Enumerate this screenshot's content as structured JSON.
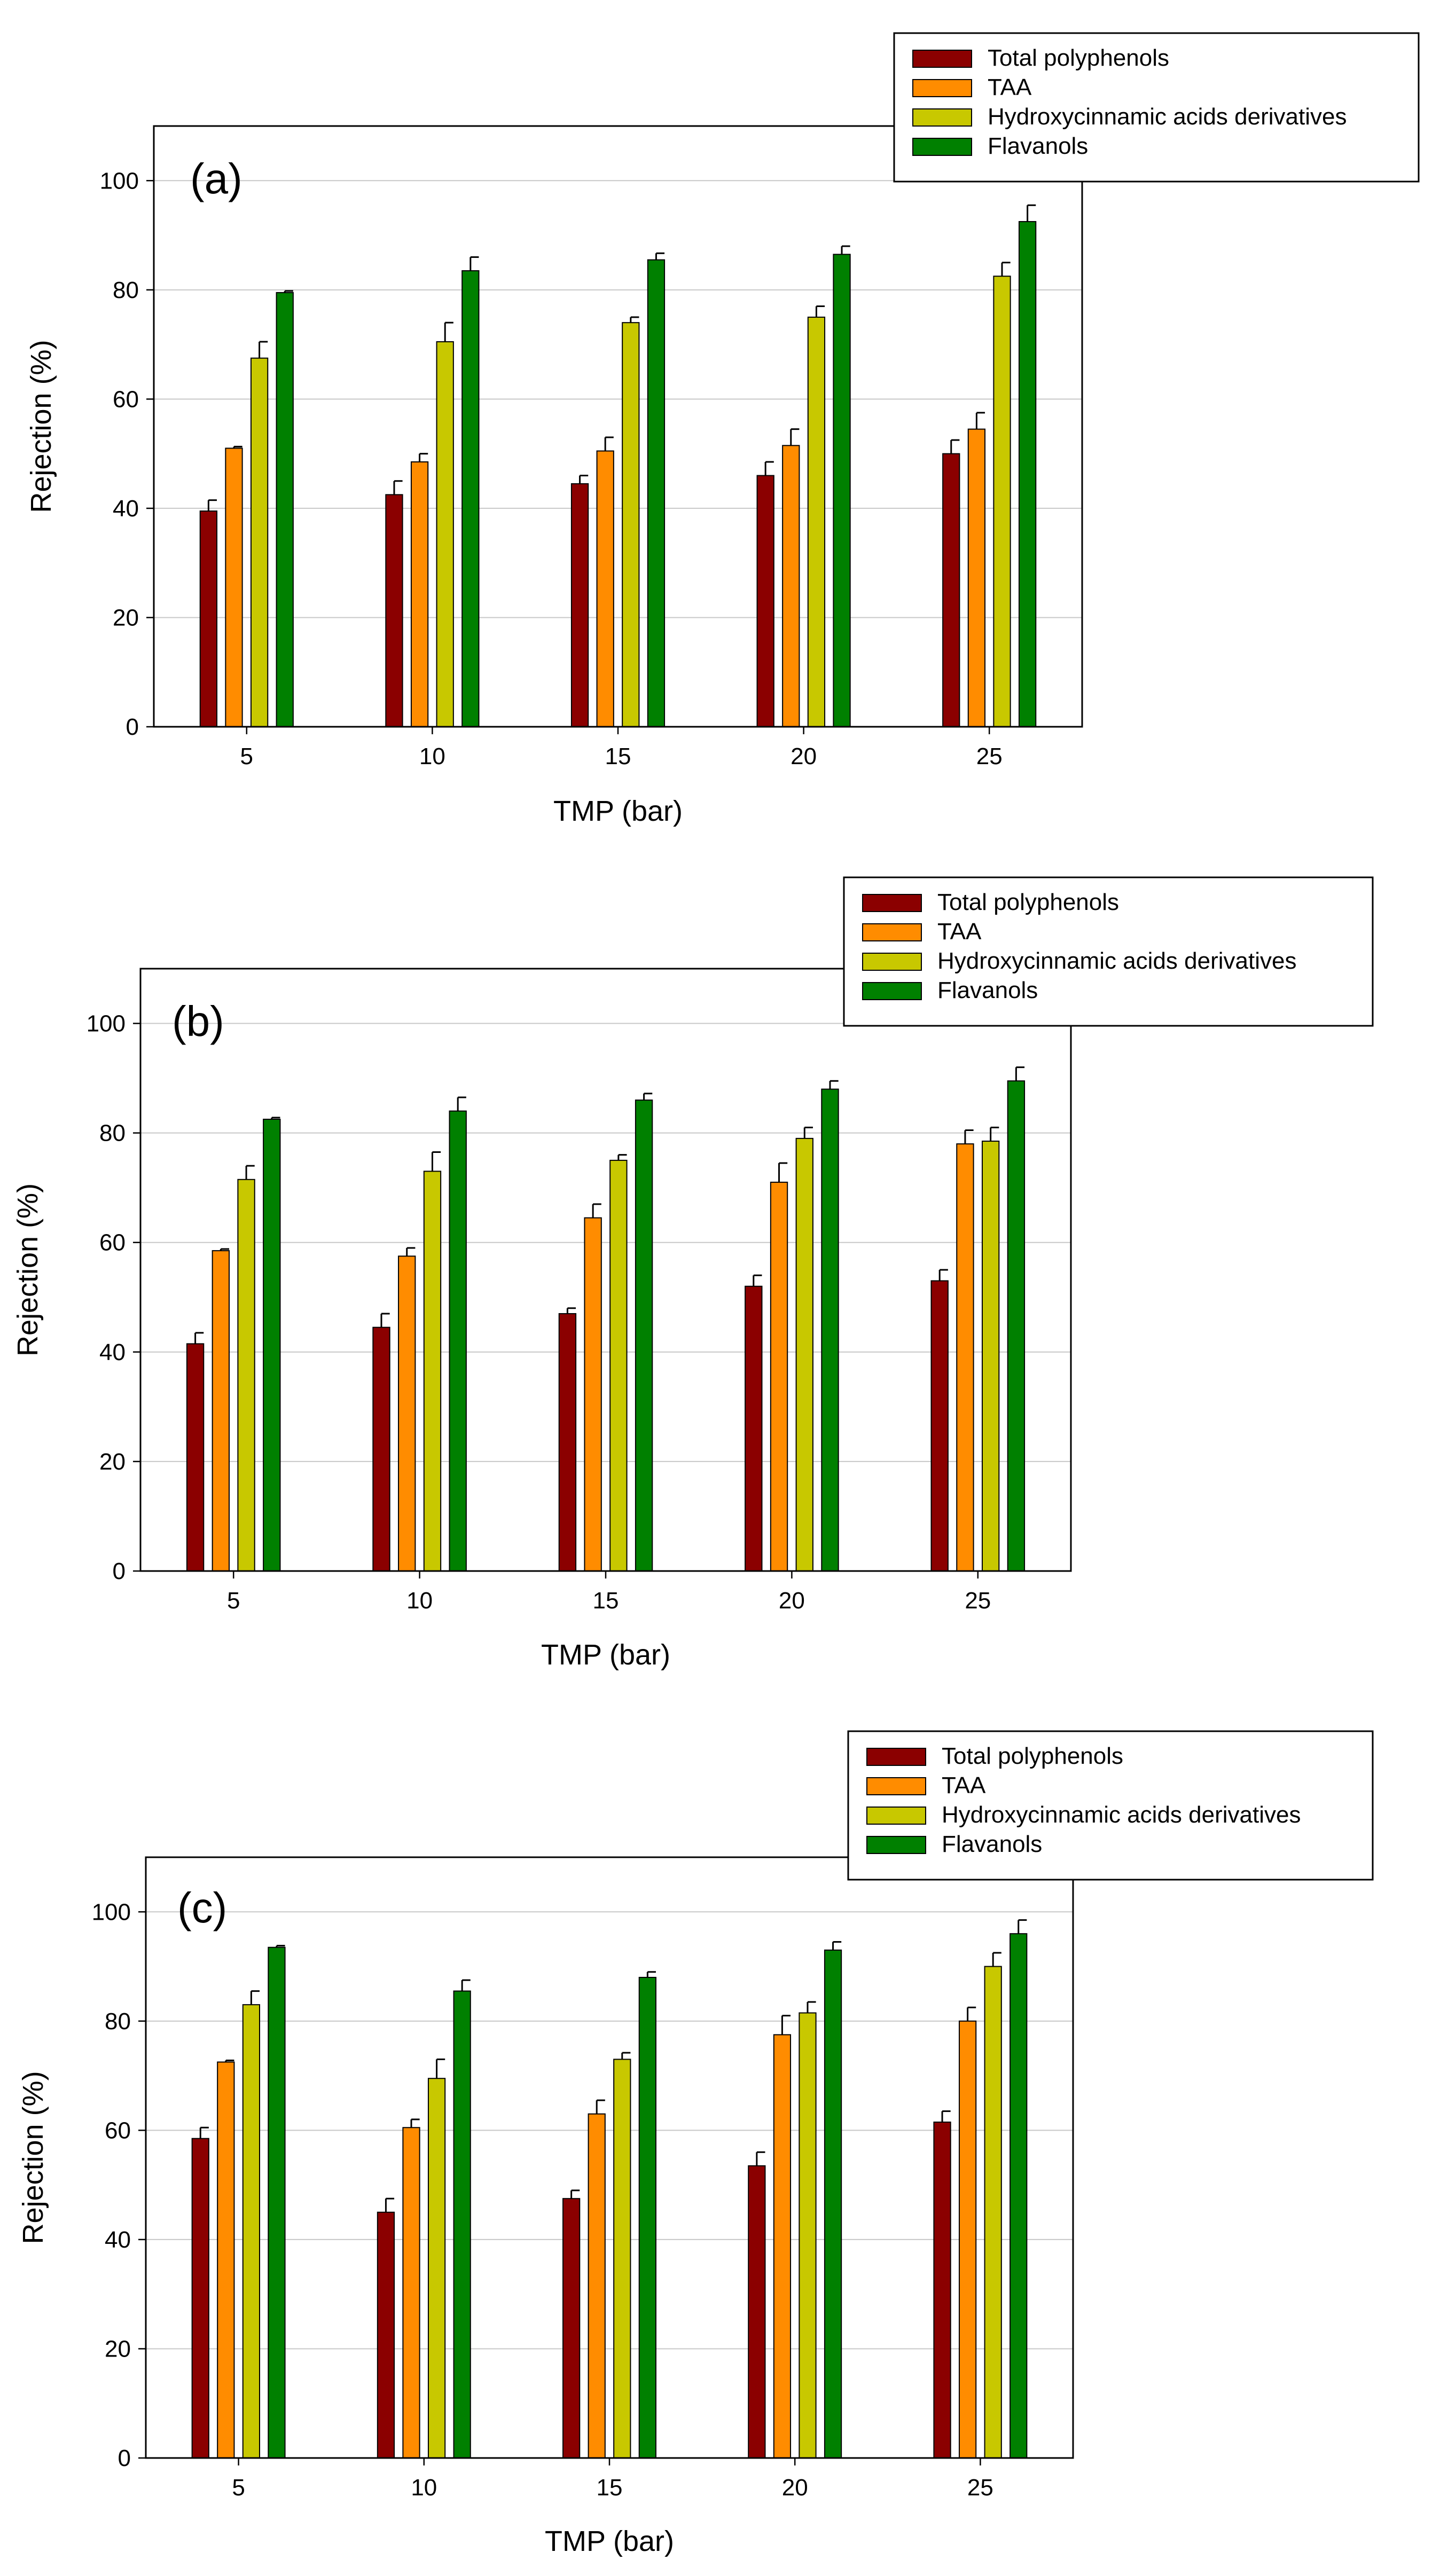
{
  "chart_data": [
    {
      "type": "bar",
      "panel_label": "(a)",
      "xlabel": "TMP (bar)",
      "ylabel": "Rejection (%)",
      "ylim": [
        0,
        110
      ],
      "yticks": [
        0,
        20,
        40,
        60,
        80,
        100
      ],
      "categories": [
        "5",
        "10",
        "15",
        "20",
        "25"
      ],
      "grid": true,
      "legend_position": "top-right",
      "series": [
        {
          "name": "Total polyphenols",
          "color": "#8b0000",
          "values": [
            39.5,
            42.5,
            44.5,
            46,
            50
          ],
          "errors": [
            2,
            2.5,
            1.5,
            2.5,
            2.5
          ]
        },
        {
          "name": "TAA",
          "color": "#ff8c00",
          "values": [
            51,
            48.5,
            50.5,
            51.5,
            54.5
          ],
          "errors": [
            0.3,
            1.5,
            2.5,
            3,
            3
          ]
        },
        {
          "name": "Hydroxycinnamic acids derivatives",
          "color": "#c8c800",
          "values": [
            67.5,
            70.5,
            74,
            75,
            82.5
          ],
          "errors": [
            3,
            3.5,
            1,
            2,
            2.5
          ]
        },
        {
          "name": "Flavanols",
          "color": "#008000",
          "values": [
            79.5,
            83.5,
            85.5,
            86.5,
            92.5
          ],
          "errors": [
            0.3,
            2.5,
            1.2,
            1.5,
            3
          ]
        }
      ]
    },
    {
      "type": "bar",
      "panel_label": "(b)",
      "xlabel": "TMP (bar)",
      "ylabel": "Rejection (%)",
      "ylim": [
        0,
        110
      ],
      "yticks": [
        0,
        20,
        40,
        60,
        80,
        100
      ],
      "categories": [
        "5",
        "10",
        "15",
        "20",
        "25"
      ],
      "grid": true,
      "legend_position": "top-right",
      "series": [
        {
          "name": "Total polyphenols",
          "color": "#8b0000",
          "values": [
            41.5,
            44.5,
            47,
            52,
            53
          ],
          "errors": [
            2,
            2.5,
            1,
            2,
            2
          ]
        },
        {
          "name": "TAA",
          "color": "#ff8c00",
          "values": [
            58.5,
            57.5,
            64.5,
            71,
            78
          ],
          "errors": [
            0.3,
            1.5,
            2.5,
            3.5,
            2.5
          ]
        },
        {
          "name": "Hydroxycinnamic acids derivatives",
          "color": "#c8c800",
          "values": [
            71.5,
            73,
            75,
            79,
            78.5
          ],
          "errors": [
            2.5,
            3.5,
            1,
            2,
            2.5
          ]
        },
        {
          "name": "Flavanols",
          "color": "#008000",
          "values": [
            82.5,
            84,
            86,
            88,
            89.5
          ],
          "errors": [
            0.3,
            2.5,
            1.2,
            1.5,
            2.5
          ]
        }
      ]
    },
    {
      "type": "bar",
      "panel_label": "(c)",
      "xlabel": "TMP (bar)",
      "ylabel": "Rejection (%)",
      "ylim": [
        0,
        110
      ],
      "yticks": [
        0,
        20,
        40,
        60,
        80,
        100
      ],
      "categories": [
        "5",
        "10",
        "15",
        "20",
        "25"
      ],
      "grid": true,
      "legend_position": "top-right",
      "series": [
        {
          "name": "Total polyphenols",
          "color": "#8b0000",
          "values": [
            58.5,
            45,
            47.5,
            53.5,
            61.5
          ],
          "errors": [
            2,
            2.5,
            1.5,
            2.5,
            2
          ]
        },
        {
          "name": "TAA",
          "color": "#ff8c00",
          "values": [
            72.5,
            60.5,
            63,
            77.5,
            80
          ],
          "errors": [
            0.3,
            1.5,
            2.5,
            3.5,
            2.5
          ]
        },
        {
          "name": "Hydroxycinnamic acids derivatives",
          "color": "#c8c800",
          "values": [
            83,
            69.5,
            73,
            81.5,
            90
          ],
          "errors": [
            2.5,
            3.5,
            1.2,
            2,
            2.5
          ]
        },
        {
          "name": "Flavanols",
          "color": "#008000",
          "values": [
            93.5,
            85.5,
            88,
            93,
            96
          ],
          "errors": [
            0.3,
            2,
            1,
            1.5,
            2.5
          ]
        }
      ]
    }
  ]
}
